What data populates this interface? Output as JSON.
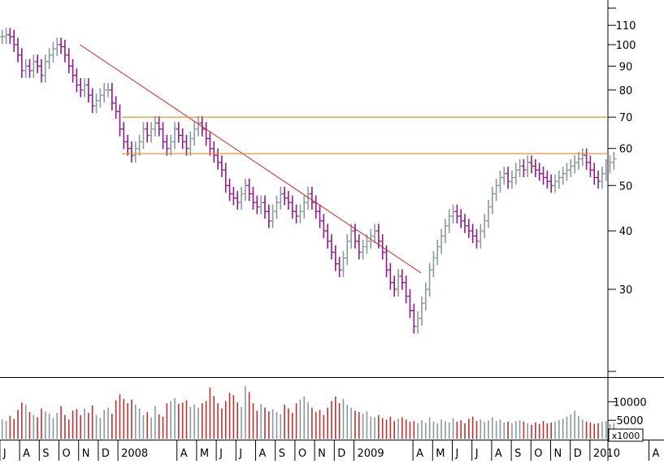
{
  "chart_data": [
    {
      "type": "ohlc",
      "scale": "log",
      "ylim": [
        24,
        120
      ],
      "yticks": [
        30,
        40,
        50,
        60,
        70,
        80,
        90,
        100,
        110
      ],
      "ytick_labels": [
        "30",
        "40",
        "50",
        "60",
        "70",
        "80",
        "90",
        "100",
        "110"
      ],
      "x_month_labels": [
        "J",
        "A",
        "S",
        "O",
        "N",
        "D",
        "2008",
        "A",
        "M",
        "J",
        "J",
        "A",
        "S",
        "O",
        "N",
        "D",
        "2009",
        "A",
        "M",
        "J",
        "J",
        "A",
        "S",
        "O",
        "N",
        "D",
        "2010",
        "A"
      ],
      "x_month_index": [
        0,
        1,
        2,
        3,
        4,
        5,
        6,
        9,
        10,
        11,
        12,
        13,
        14,
        15,
        16,
        17,
        18,
        21,
        22,
        23,
        24,
        25,
        26,
        27,
        28,
        29,
        30,
        33
      ],
      "up_color": "#8a9a9a",
      "down_color": "#8b1a8b",
      "weekly_close": [
        104,
        105,
        104,
        100,
        95,
        88,
        90,
        88,
        92,
        90,
        86,
        92,
        95,
        98,
        100,
        99,
        95,
        90,
        86,
        82,
        80,
        82,
        78,
        74,
        76,
        78,
        80,
        80,
        75,
        72,
        66,
        62,
        60,
        58,
        60,
        62,
        66,
        64,
        66,
        68,
        66,
        62,
        60,
        62,
        66,
        64,
        62,
        60,
        63,
        66,
        68,
        66,
        63,
        60,
        58,
        56,
        54,
        50,
        48,
        47,
        46,
        48,
        50,
        48,
        46,
        45,
        46,
        44,
        42,
        44,
        46,
        48,
        47,
        46,
        44,
        43,
        44,
        46,
        48,
        46,
        44,
        42,
        40,
        38,
        36,
        34,
        33,
        35,
        38,
        40,
        38,
        36,
        37,
        38,
        39,
        40,
        38,
        36,
        33,
        31,
        30,
        32,
        31,
        29,
        27,
        25,
        26,
        28,
        30,
        33,
        35,
        37,
        39,
        41,
        43,
        44,
        43,
        42,
        41,
        40,
        39,
        38,
        40,
        42,
        45,
        48,
        50,
        52,
        53,
        51,
        52,
        54,
        55,
        54,
        56,
        55,
        54,
        53,
        52,
        51,
        50,
        51,
        52,
        53,
        54,
        55,
        56,
        57,
        58,
        56,
        54,
        52,
        51,
        53,
        55,
        56,
        57
      ],
      "ma_levels": [],
      "trendline": {
        "start": {
          "month": 3.65,
          "price": 100
        },
        "end": {
          "month": 21.0,
          "price": 32.5
        },
        "color": "#d02020"
      },
      "horizontal_lines": [
        {
          "price": 70,
          "color": "#e08a20"
        },
        {
          "price": 58.5,
          "color": "#e08a20"
        }
      ]
    },
    {
      "type": "bar",
      "title": "",
      "ylim": [
        0,
        16000
      ],
      "yticks": [
        5000,
        10000
      ],
      "ytick_labels": [
        "5000",
        "10000"
      ],
      "unit_label": "x1000",
      "up_color": "#8a9a9a",
      "down_color": "#c03030",
      "volume": [
        5200,
        4800,
        6200,
        5400,
        7800,
        9800,
        9200,
        7200,
        6400,
        5800,
        8200,
        7400,
        6800,
        5600,
        7000,
        8800,
        6400,
        5200,
        7600,
        8000,
        6400,
        8200,
        7000,
        9000,
        6400,
        5600,
        7800,
        8400,
        6800,
        10400,
        12000,
        10800,
        9600,
        10600,
        9200,
        8200,
        6400,
        7200,
        5800,
        8800,
        6600,
        6000,
        9600,
        10200,
        11000,
        9400,
        9800,
        10400,
        8600,
        9200,
        8400,
        9600,
        10200,
        13800,
        11600,
        9600,
        8200,
        10200,
        12400,
        11800,
        9800,
        8600,
        14200,
        12600,
        9600,
        7600,
        9400,
        8400,
        7400,
        8000,
        7200,
        6600,
        9200,
        8200,
        7000,
        9600,
        10600,
        11400,
        9800,
        8400,
        7200,
        7800,
        6400,
        8400,
        10200,
        11400,
        9600,
        10800,
        9200,
        8400,
        7600,
        7200,
        6800,
        7400,
        6000,
        5800,
        6400,
        5600,
        5200,
        6000,
        4800,
        5400,
        5800,
        5200,
        4600,
        4800,
        4200,
        5000,
        4400,
        5800,
        4600,
        4200,
        5200,
        4800,
        4400,
        5600,
        4600,
        5000,
        4200,
        5400,
        6000,
        4800,
        5200,
        4600,
        5000,
        5800,
        4800,
        5200,
        4400,
        4600,
        4200,
        4800,
        5000,
        4600,
        4200,
        3800,
        4400,
        4000,
        4800,
        4200,
        4400,
        4600,
        5000,
        5400,
        6000,
        6600,
        7600,
        6200,
        5200,
        4600,
        4400,
        4000,
        4200,
        4600,
        4800,
        4000,
        4200
      ]
    }
  ]
}
